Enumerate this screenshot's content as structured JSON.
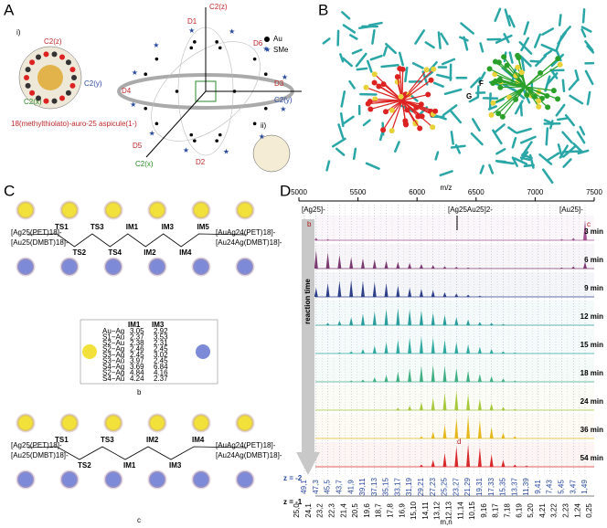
{
  "panel_a": {
    "label": "A",
    "sub_i": "i)",
    "sub_ii": "ii)",
    "axis_labels": [
      "C2(z)",
      "C2(y)",
      "C2(x)"
    ],
    "caption": "18(methylthiolato)-auro-25 aspicule(1-)",
    "directions": [
      "D1",
      "D2",
      "D3",
      "D4",
      "D5",
      "D6"
    ],
    "diagram_axes": [
      "C2(z)",
      "C2(y)",
      "C2(x)"
    ],
    "legend": [
      "Au",
      "SMe"
    ]
  },
  "panel_b": {
    "label": "B",
    "atoms": [
      "F",
      "G"
    ]
  },
  "panel_c": {
    "label": "C",
    "subs": [
      "a",
      "b",
      "c"
    ],
    "left_top": "[Ag25(PET)18]-",
    "left_bottom": "[Au25(DMBT)18]-",
    "right_top": "[AuAg24(PET)18]-",
    "right_bottom": "[Au24Ag(DMBT)18]-",
    "scheme_a": [
      "TS1",
      "TS2",
      "TS3",
      "TS4",
      "IM1",
      "IM2",
      "IM3",
      "IM4",
      "IM5"
    ],
    "scheme_c": [
      "TS1",
      "TS2",
      "TS3",
      "IM1",
      "IM2",
      "IM3",
      "IM4"
    ],
    "table": {
      "header": [
        "IM1",
        "IM3"
      ],
      "rows": [
        [
          "Au−Ag",
          "3.05",
          "2.92"
        ],
        [
          "S1−Au",
          "2.37",
          "3.53"
        ],
        [
          "S2−Au",
          "2.38",
          "2.31"
        ],
        [
          "S2−Ag",
          "2.46",
          "2.45"
        ],
        [
          "S3−Ag",
          "2.45",
          "3.02"
        ],
        [
          "S3−Au",
          "3.97",
          "2.45"
        ],
        [
          "S4−Ag",
          "3.69",
          "6.84"
        ],
        [
          "S2−Ag",
          "4.84",
          "4.16"
        ],
        [
          "S4−Au",
          "4.24",
          "2.37"
        ]
      ]
    }
  },
  "panel_d": {
    "label": "D",
    "type": "spectrum",
    "x_label": "m/z",
    "xlim": [
      5000,
      7500
    ],
    "xticks": [
      5000,
      5500,
      6000,
      6500,
      7000,
      7500
    ],
    "annotations": [
      "[Ag25]-",
      "[Ag25Au25]2-",
      "[Au25]-",
      "b",
      "c",
      "d"
    ],
    "arrow_label": "reaction time",
    "traces": [
      {
        "name": "3 min",
        "color": "#a0518f",
        "values": [
          1,
          0.1,
          0.05,
          0,
          0,
          0,
          0,
          0,
          0,
          0,
          0,
          0,
          0,
          0,
          0,
          0,
          0,
          0,
          0,
          0,
          0,
          0,
          0.05,
          0.1,
          0.9
        ]
      },
      {
        "name": "6 min",
        "color": "#7a3a70",
        "values": [
          0.6,
          0.8,
          0.7,
          0.6,
          0.5,
          0.45,
          0.4,
          0.35,
          0.3,
          0.25,
          0.2,
          0.15,
          0.1,
          0.08,
          0.05,
          0.03,
          0,
          0,
          0,
          0,
          0,
          0,
          0.05,
          0.1,
          0.3
        ]
      },
      {
        "name": "9 min",
        "color": "#2e3f8a",
        "values": [
          0.2,
          0.4,
          0.6,
          0.7,
          0.75,
          0.7,
          0.65,
          0.6,
          0.5,
          0.4,
          0.35,
          0.3,
          0.2,
          0.15,
          0.1,
          0.05,
          0,
          0,
          0,
          0,
          0,
          0,
          0,
          0,
          0
        ]
      },
      {
        "name": "12 min",
        "color": "#2a9d9d",
        "values": [
          0,
          0,
          0.1,
          0.2,
          0.35,
          0.5,
          0.6,
          0.7,
          0.75,
          0.7,
          0.65,
          0.55,
          0.45,
          0.35,
          0.25,
          0.15,
          0.1,
          0.05,
          0,
          0,
          0,
          0,
          0,
          0,
          0
        ]
      },
      {
        "name": "15 min",
        "color": "#2fa9a0",
        "values": [
          0,
          0,
          0,
          0.05,
          0.1,
          0.2,
          0.35,
          0.5,
          0.6,
          0.7,
          0.75,
          0.7,
          0.6,
          0.5,
          0.4,
          0.3,
          0.2,
          0.1,
          0.05,
          0,
          0,
          0,
          0,
          0,
          0
        ]
      },
      {
        "name": "18 min",
        "color": "#3fae82",
        "values": [
          0,
          0,
          0,
          0,
          0.05,
          0.1,
          0.2,
          0.3,
          0.45,
          0.6,
          0.7,
          0.75,
          0.7,
          0.6,
          0.5,
          0.35,
          0.25,
          0.15,
          0.05,
          0,
          0,
          0,
          0,
          0,
          0
        ]
      },
      {
        "name": "24 min",
        "color": "#a6c83a",
        "values": [
          0,
          0,
          0,
          0,
          0,
          0,
          0,
          0,
          0.1,
          0.2,
          0.35,
          0.55,
          0.75,
          0.85,
          0.7,
          0.5,
          0.3,
          0.15,
          0.05,
          0,
          0,
          0,
          0,
          0,
          0
        ]
      },
      {
        "name": "36 min",
        "color": "#e6b81e",
        "values": [
          0,
          0,
          0,
          0,
          0,
          0,
          0,
          0,
          0,
          0,
          0.1,
          0.3,
          0.6,
          0.9,
          1,
          0.8,
          0.5,
          0.25,
          0.1,
          0,
          0,
          0,
          0,
          0,
          0
        ]
      },
      {
        "name": "54 min",
        "color": "#d8282a",
        "values": [
          0,
          0,
          0,
          0,
          0,
          0,
          0,
          0,
          0,
          0,
          0.1,
          0.3,
          0.6,
          0.9,
          1,
          0.85,
          0.55,
          0.3,
          0.1,
          0.05,
          0,
          0,
          0,
          0,
          0
        ]
      }
    ],
    "z2_label": "z = -2",
    "z2_mn": [
      "49,1",
      "47,3",
      "45,5",
      "43,7",
      "41,9",
      "39,11",
      "37,13",
      "35,15",
      "33,17",
      "31,19",
      "29,21",
      "27,23",
      "25,25",
      "23,27",
      "21,29",
      "19,31",
      "17,33",
      "15,35",
      "13,37",
      "11,39",
      "9,41",
      "7,43",
      "5,45",
      "3,47",
      "1,49"
    ],
    "z1_label": "z = -1",
    "z1_mn": [
      "25,0",
      "24,1",
      "23,2",
      "22,3",
      "21,4",
      "20,5",
      "19,6",
      "18,7",
      "17,8",
      "16,9",
      "15,10",
      "14,11",
      "13,12",
      "12,13",
      "11,14",
      "10,15",
      "9,16",
      "8,17",
      "7,18",
      "6,19",
      "5,20",
      "4,21",
      "3,22",
      "2,23",
      "1,24",
      "0,25"
    ],
    "mn_label": "m,n"
  }
}
